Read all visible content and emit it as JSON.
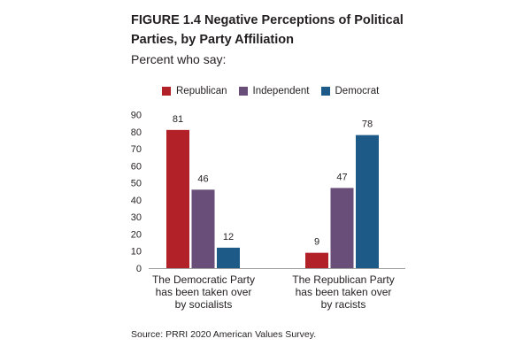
{
  "figure": {
    "title": "FIGURE 1.4  Negative Perceptions of Political Parties, by Party Affiliation",
    "subtitle": "Percent who say:",
    "source": "Source: PRRI 2020 American Values Survey."
  },
  "colors": {
    "republican": "#b22028",
    "independent": "#694e7a",
    "democrat": "#1e5a87"
  },
  "chart_data": {
    "type": "bar",
    "categories": [
      [
        "The Democratic Party",
        "has been taken over",
        "by socialists"
      ],
      [
        "The Republican Party",
        "has been taken over",
        "by racists"
      ]
    ],
    "series": [
      {
        "name": "Republican",
        "color": "#b22028",
        "values": [
          81,
          9
        ]
      },
      {
        "name": "Independent",
        "color": "#694e7a",
        "values": [
          46,
          47
        ]
      },
      {
        "name": "Democrat",
        "color": "#1e5a87",
        "values": [
          12,
          78
        ]
      }
    ],
    "ylim": [
      0,
      90
    ],
    "yticks": [
      0,
      10,
      20,
      30,
      40,
      50,
      60,
      70,
      80,
      90
    ],
    "legend_position": "top",
    "grid": false
  }
}
